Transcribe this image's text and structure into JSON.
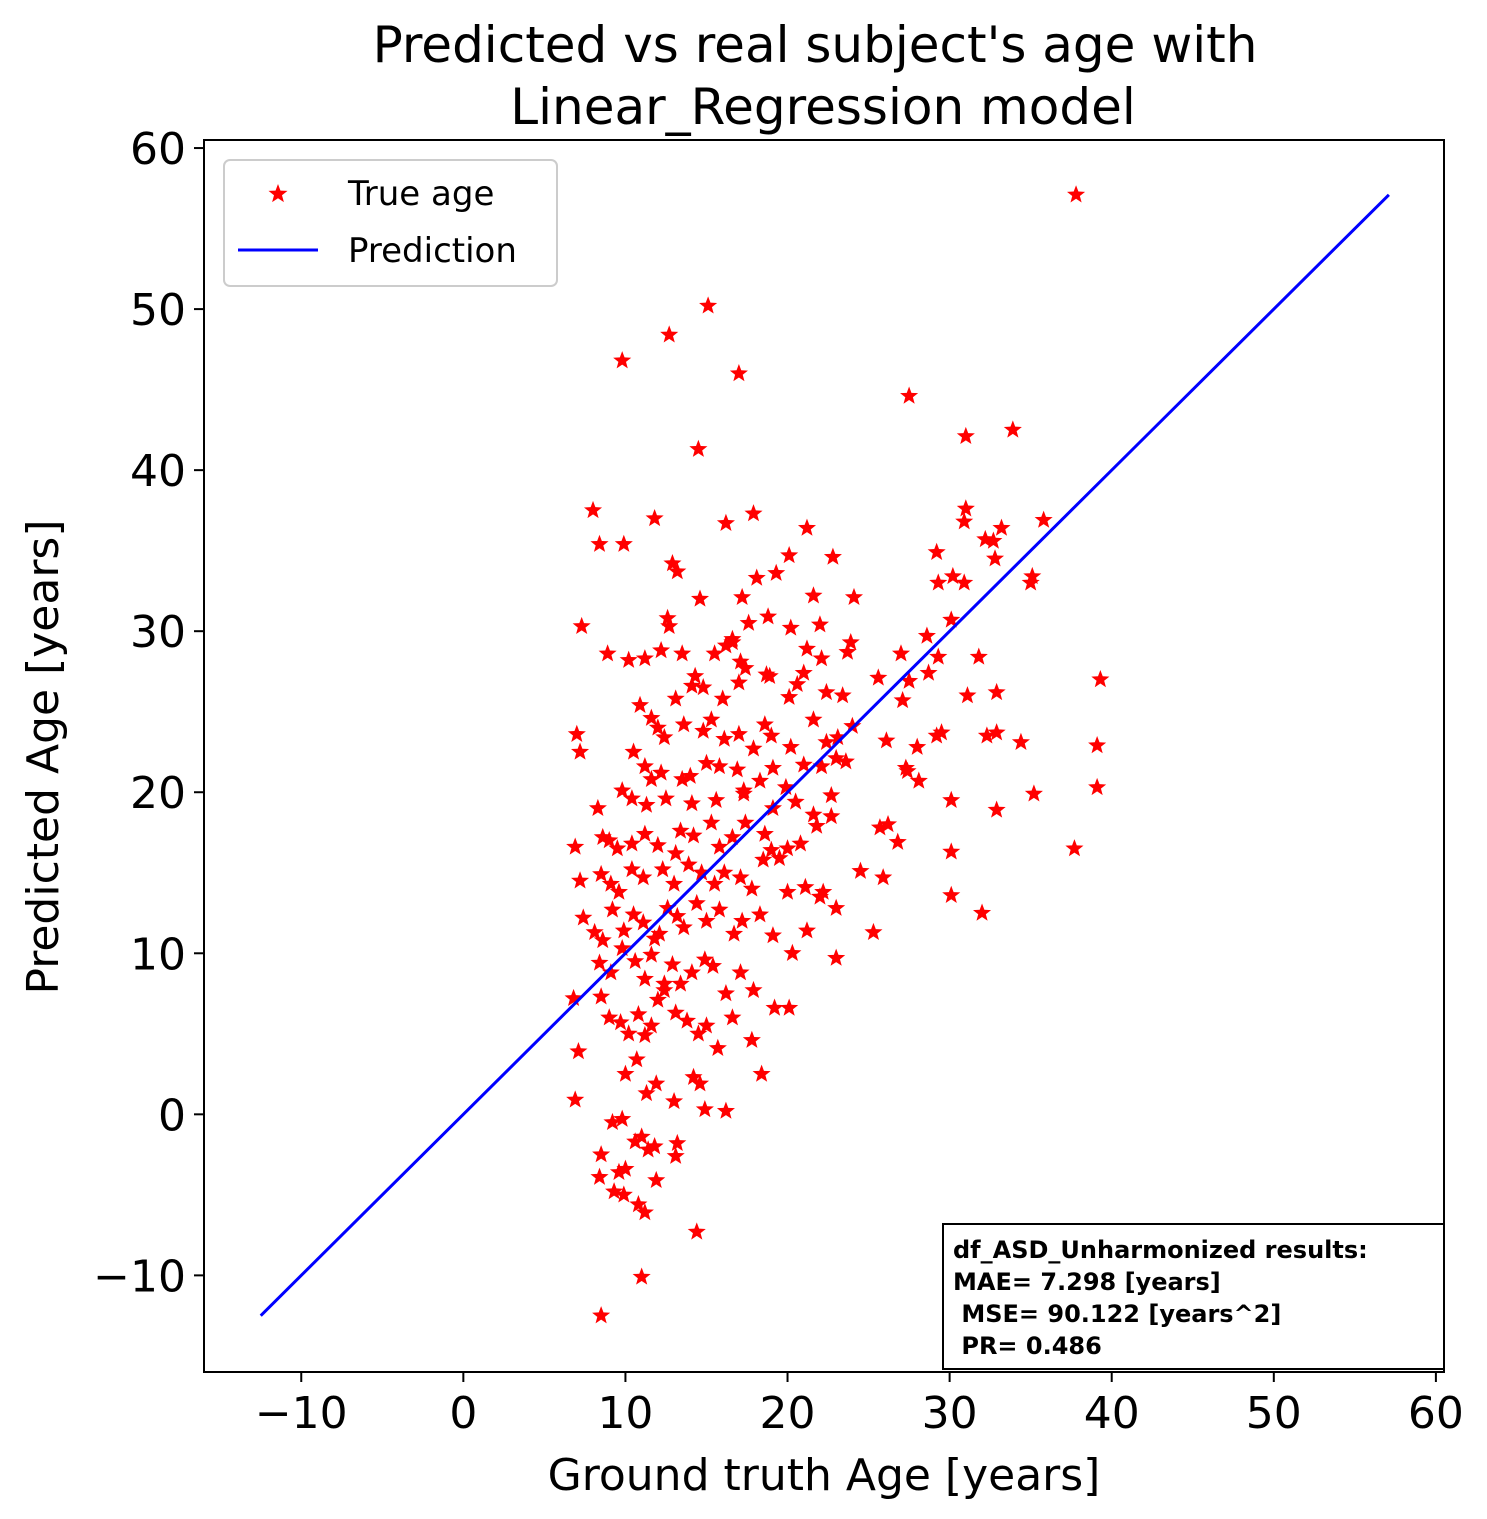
{
  "chart_data": {
    "type": "scatter",
    "title_lines": [
      "Predicted vs real subject's age with",
      "Linear_Regression model"
    ],
    "xlabel": "Ground truth Age [years]",
    "ylabel": "Predicted Age [years]",
    "xlim": [
      -16,
      60.5
    ],
    "ylim": [
      -16,
      60.5
    ],
    "xticks": [
      -10,
      0,
      10,
      20,
      30,
      40,
      50,
      60
    ],
    "yticks": [
      -10,
      0,
      10,
      20,
      30,
      40,
      50,
      60
    ],
    "tick_labels": [
      "−10",
      "0",
      "10",
      "20",
      "30",
      "40",
      "50",
      "60"
    ],
    "grid": false,
    "legend": {
      "placement": "top-left",
      "entries": [
        {
          "label": "True age",
          "marker": "star",
          "color": "#ff0000"
        },
        {
          "label": "Prediction",
          "marker": "line",
          "color": "#0000ff"
        }
      ]
    },
    "series": [
      {
        "name": "True age",
        "marker": "star",
        "color": "#ff0000",
        "points": [
          [
            37.8,
            57.1
          ],
          [
            15.1,
            50.2
          ],
          [
            12.7,
            48.4
          ],
          [
            9.8,
            46.8
          ],
          [
            17.0,
            46.0
          ],
          [
            27.5,
            44.6
          ],
          [
            33.9,
            42.5
          ],
          [
            31.0,
            42.1
          ],
          [
            14.5,
            41.3
          ],
          [
            8.0,
            37.5
          ],
          [
            11.8,
            37.0
          ],
          [
            17.9,
            37.3
          ],
          [
            16.2,
            36.7
          ],
          [
            21.2,
            36.4
          ],
          [
            31.0,
            37.6
          ],
          [
            35.8,
            36.9
          ],
          [
            30.9,
            36.8
          ],
          [
            8.4,
            35.4
          ],
          [
            9.9,
            35.4
          ],
          [
            12.9,
            34.2
          ],
          [
            13.2,
            33.7
          ],
          [
            20.1,
            34.7
          ],
          [
            22.8,
            34.6
          ],
          [
            29.2,
            34.9
          ],
          [
            32.2,
            35.7
          ],
          [
            32.7,
            35.6
          ],
          [
            33.2,
            36.4
          ],
          [
            32.8,
            34.5
          ],
          [
            14.6,
            32.0
          ],
          [
            17.2,
            32.1
          ],
          [
            18.1,
            33.3
          ],
          [
            19.3,
            33.6
          ],
          [
            21.6,
            32.2
          ],
          [
            24.1,
            32.1
          ],
          [
            29.3,
            33.0
          ],
          [
            30.2,
            33.4
          ],
          [
            30.9,
            33.0
          ],
          [
            35.1,
            33.4
          ],
          [
            35.0,
            33.0
          ],
          [
            7.3,
            30.3
          ],
          [
            12.6,
            30.8
          ],
          [
            12.7,
            30.3
          ],
          [
            16.6,
            29.5
          ],
          [
            17.6,
            30.5
          ],
          [
            18.8,
            30.9
          ],
          [
            20.2,
            30.2
          ],
          [
            22.0,
            30.4
          ],
          [
            28.6,
            29.7
          ],
          [
            30.1,
            30.7
          ],
          [
            8.9,
            28.6
          ],
          [
            10.2,
            28.2
          ],
          [
            11.2,
            28.3
          ],
          [
            12.2,
            28.8
          ],
          [
            13.5,
            28.6
          ],
          [
            15.5,
            28.6
          ],
          [
            16.2,
            29.1
          ],
          [
            16.6,
            29.3
          ],
          [
            17.1,
            28.1
          ],
          [
            17.4,
            27.7
          ],
          [
            18.7,
            27.3
          ],
          [
            21.2,
            28.9
          ],
          [
            22.1,
            28.3
          ],
          [
            23.7,
            28.7
          ],
          [
            23.9,
            29.3
          ],
          [
            25.6,
            27.1
          ],
          [
            27.0,
            28.6
          ],
          [
            29.3,
            28.4
          ],
          [
            31.8,
            28.4
          ],
          [
            39.3,
            27.0
          ],
          [
            13.1,
            25.8
          ],
          [
            14.1,
            26.6
          ],
          [
            14.3,
            27.2
          ],
          [
            14.8,
            26.5
          ],
          [
            16.0,
            25.8
          ],
          [
            17.0,
            26.8
          ],
          [
            18.9,
            27.2
          ],
          [
            20.1,
            25.9
          ],
          [
            20.6,
            26.7
          ],
          [
            21.0,
            27.4
          ],
          [
            22.4,
            26.2
          ],
          [
            23.4,
            26.0
          ],
          [
            27.1,
            25.7
          ],
          [
            27.5,
            26.9
          ],
          [
            28.7,
            27.4
          ],
          [
            31.1,
            26.0
          ],
          [
            32.9,
            26.2
          ],
          [
            7.0,
            23.6
          ],
          [
            7.2,
            22.5
          ],
          [
            10.9,
            25.4
          ],
          [
            11.6,
            24.6
          ],
          [
            12.0,
            24.0
          ],
          [
            12.4,
            23.4
          ],
          [
            13.6,
            24.2
          ],
          [
            14.8,
            23.8
          ],
          [
            15.3,
            24.5
          ],
          [
            16.1,
            23.3
          ],
          [
            17.0,
            23.6
          ],
          [
            17.9,
            22.7
          ],
          [
            18.6,
            24.2
          ],
          [
            19.0,
            23.5
          ],
          [
            20.2,
            22.8
          ],
          [
            21.6,
            24.5
          ],
          [
            22.4,
            23.1
          ],
          [
            23.1,
            23.4
          ],
          [
            24.0,
            24.1
          ],
          [
            26.1,
            23.2
          ],
          [
            27.3,
            21.5
          ],
          [
            28.0,
            22.8
          ],
          [
            29.2,
            23.5
          ],
          [
            29.5,
            23.7
          ],
          [
            32.3,
            23.5
          ],
          [
            32.9,
            23.7
          ],
          [
            34.4,
            23.1
          ],
          [
            39.1,
            22.9
          ],
          [
            10.5,
            22.5
          ],
          [
            11.2,
            21.6
          ],
          [
            11.6,
            20.8
          ],
          [
            12.2,
            21.2
          ],
          [
            13.5,
            20.8
          ],
          [
            14.0,
            21.0
          ],
          [
            15.0,
            21.8
          ],
          [
            15.8,
            21.6
          ],
          [
            16.9,
            21.4
          ],
          [
            17.3,
            20.1
          ],
          [
            18.3,
            20.7
          ],
          [
            19.1,
            21.5
          ],
          [
            19.9,
            20.3
          ],
          [
            21.0,
            21.7
          ],
          [
            22.1,
            21.6
          ],
          [
            23.0,
            22.1
          ],
          [
            23.6,
            21.9
          ],
          [
            27.4,
            21.3
          ],
          [
            28.1,
            20.7
          ],
          [
            35.2,
            19.9
          ],
          [
            39.1,
            20.3
          ],
          [
            9.8,
            20.1
          ],
          [
            10.4,
            19.6
          ],
          [
            11.3,
            19.2
          ],
          [
            12.5,
            19.6
          ],
          [
            14.1,
            19.3
          ],
          [
            15.6,
            19.5
          ],
          [
            17.3,
            19.9
          ],
          [
            19.1,
            19.0
          ],
          [
            20.5,
            19.4
          ],
          [
            21.6,
            18.6
          ],
          [
            22.7,
            19.8
          ],
          [
            30.1,
            19.5
          ],
          [
            32.9,
            18.9
          ],
          [
            8.3,
            19.0
          ],
          [
            8.6,
            17.2
          ],
          [
            9.0,
            17.0
          ],
          [
            9.5,
            16.5
          ],
          [
            10.4,
            16.8
          ],
          [
            11.2,
            17.4
          ],
          [
            12.0,
            16.7
          ],
          [
            13.1,
            16.2
          ],
          [
            13.4,
            17.6
          ],
          [
            14.2,
            17.3
          ],
          [
            15.3,
            18.1
          ],
          [
            15.8,
            16.6
          ],
          [
            16.6,
            17.2
          ],
          [
            17.4,
            18.1
          ],
          [
            18.6,
            17.4
          ],
          [
            19.0,
            16.4
          ],
          [
            20.0,
            16.5
          ],
          [
            20.8,
            16.8
          ],
          [
            21.8,
            17.9
          ],
          [
            22.7,
            18.5
          ],
          [
            25.7,
            17.8
          ],
          [
            26.2,
            18.0
          ],
          [
            26.8,
            16.9
          ],
          [
            30.1,
            16.3
          ],
          [
            37.7,
            16.5
          ],
          [
            6.9,
            16.6
          ],
          [
            7.2,
            14.5
          ],
          [
            8.5,
            14.9
          ],
          [
            9.1,
            14.3
          ],
          [
            9.6,
            13.8
          ],
          [
            10.4,
            15.2
          ],
          [
            11.1,
            14.7
          ],
          [
            12.3,
            15.2
          ],
          [
            13.0,
            14.3
          ],
          [
            13.9,
            15.5
          ],
          [
            14.7,
            15.0
          ],
          [
            15.5,
            14.3
          ],
          [
            16.1,
            15.0
          ],
          [
            17.1,
            14.7
          ],
          [
            17.8,
            14.0
          ],
          [
            18.5,
            15.8
          ],
          [
            19.5,
            15.9
          ],
          [
            20.0,
            13.8
          ],
          [
            21.1,
            14.1
          ],
          [
            22.2,
            13.8
          ],
          [
            24.5,
            15.1
          ],
          [
            25.9,
            14.7
          ],
          [
            7.4,
            12.2
          ],
          [
            8.1,
            11.3
          ],
          [
            8.6,
            10.8
          ],
          [
            9.2,
            12.7
          ],
          [
            9.9,
            11.4
          ],
          [
            10.5,
            12.4
          ],
          [
            11.1,
            11.9
          ],
          [
            11.8,
            10.9
          ],
          [
            12.1,
            11.2
          ],
          [
            12.6,
            12.8
          ],
          [
            13.2,
            12.3
          ],
          [
            13.6,
            11.6
          ],
          [
            14.4,
            13.1
          ],
          [
            15.0,
            12.0
          ],
          [
            15.8,
            12.7
          ],
          [
            16.7,
            11.2
          ],
          [
            17.2,
            12.0
          ],
          [
            18.3,
            12.4
          ],
          [
            19.1,
            11.1
          ],
          [
            21.2,
            11.4
          ],
          [
            22.0,
            13.5
          ],
          [
            23.0,
            12.8
          ],
          [
            25.3,
            11.3
          ],
          [
            30.1,
            13.6
          ],
          [
            32.0,
            12.5
          ],
          [
            8.4,
            9.4
          ],
          [
            9.1,
            8.8
          ],
          [
            9.8,
            10.3
          ],
          [
            10.6,
            9.5
          ],
          [
            11.2,
            8.4
          ],
          [
            11.6,
            9.9
          ],
          [
            12.4,
            8.1
          ],
          [
            12.9,
            9.3
          ],
          [
            13.4,
            8.1
          ],
          [
            14.1,
            8.8
          ],
          [
            14.9,
            9.6
          ],
          [
            15.4,
            9.2
          ],
          [
            16.2,
            7.5
          ],
          [
            17.1,
            8.8
          ],
          [
            17.9,
            7.7
          ],
          [
            19.2,
            6.6
          ],
          [
            20.1,
            6.6
          ],
          [
            20.3,
            10.0
          ],
          [
            23.0,
            9.7
          ],
          [
            6.8,
            7.2
          ],
          [
            8.5,
            7.3
          ],
          [
            9.0,
            6.0
          ],
          [
            9.7,
            5.7
          ],
          [
            10.2,
            5.0
          ],
          [
            10.8,
            6.2
          ],
          [
            11.2,
            4.9
          ],
          [
            11.6,
            5.5
          ],
          [
            12.0,
            7.1
          ],
          [
            12.4,
            7.7
          ],
          [
            13.1,
            6.3
          ],
          [
            13.8,
            5.8
          ],
          [
            14.5,
            5.0
          ],
          [
            15.0,
            5.5
          ],
          [
            15.7,
            4.1
          ],
          [
            16.6,
            6.0
          ],
          [
            17.8,
            4.6
          ],
          [
            18.4,
            2.5
          ],
          [
            7.1,
            3.9
          ],
          [
            6.9,
            0.9
          ],
          [
            10.0,
            2.5
          ],
          [
            10.7,
            3.4
          ],
          [
            11.3,
            1.3
          ],
          [
            11.9,
            1.9
          ],
          [
            14.2,
            2.3
          ],
          [
            14.6,
            1.9
          ],
          [
            13.0,
            0.8
          ],
          [
            14.9,
            0.3
          ],
          [
            16.2,
            0.2
          ],
          [
            9.2,
            -0.5
          ],
          [
            9.8,
            -0.3
          ],
          [
            10.6,
            -1.7
          ],
          [
            11.0,
            -1.4
          ],
          [
            11.4,
            -2.2
          ],
          [
            11.8,
            -2.0
          ],
          [
            13.2,
            -1.8
          ],
          [
            13.1,
            -2.6
          ],
          [
            8.5,
            -2.5
          ],
          [
            9.6,
            -3.6
          ],
          [
            10.0,
            -3.4
          ],
          [
            8.4,
            -3.9
          ],
          [
            9.3,
            -4.8
          ],
          [
            9.9,
            -5.0
          ],
          [
            10.8,
            -5.6
          ],
          [
            11.2,
            -6.1
          ],
          [
            11.9,
            -4.1
          ],
          [
            14.4,
            -7.3
          ],
          [
            11.0,
            -10.1
          ],
          [
            8.5,
            -12.5
          ]
        ]
      },
      {
        "name": "Prediction",
        "marker": "line",
        "color": "#0000ff",
        "x": [
          -12.5,
          57.1
        ],
        "y": [
          -12.5,
          57.1
        ]
      }
    ],
    "annotation": {
      "placement": "bottom-right",
      "lines": [
        "df_ASD_Unharmonized results:",
        "MAE= 7.298 [years]",
        " MSE= 90.122 [years^2]",
        " PR= 0.486"
      ]
    }
  }
}
